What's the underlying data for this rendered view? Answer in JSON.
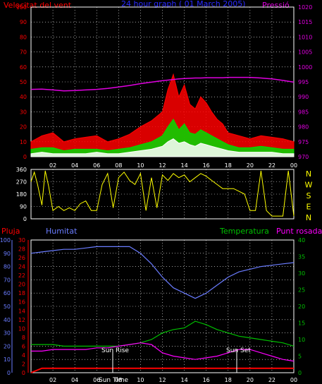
{
  "header": {
    "left_title": "Velocitat del vent",
    "center_title": "24 hour graph ( 01 March 2005)",
    "right_title": "Pressió"
  },
  "colors": {
    "background": "#000000",
    "grid": "#ffffff",
    "wind_title": "#ff0000",
    "center_title": "#2a2aff",
    "pressure": "#e000e0",
    "wind_speed": "#ff0000",
    "wind_avg": "#00dd00",
    "wind_low": "#ffffff",
    "direction": "#ffff00",
    "humidity": "#6a7cff",
    "temperature": "#00c000",
    "dewpoint": "#ff00ff",
    "rain": "#ff0000",
    "sun_markers": "#ffffff"
  },
  "hour_ticks": [
    "02",
    "04",
    "06",
    "08",
    "10",
    "12",
    "14",
    "16",
    "18",
    "20",
    "22",
    "00"
  ],
  "panel_wind": {
    "left_ticks": [
      "100",
      "90",
      "80",
      "70",
      "60",
      "50",
      "40",
      "30",
      "20",
      "10",
      "0"
    ],
    "right_ticks": [
      "1020",
      "1015",
      "1010",
      "1005",
      "1000",
      "995",
      "990",
      "985",
      "980",
      "975",
      "970"
    ]
  },
  "panel_dir": {
    "left_ticks": [
      "360",
      "270",
      "180",
      "90",
      "0"
    ],
    "right_letters": [
      "N",
      "W",
      "S",
      "E",
      "N"
    ]
  },
  "panel_env": {
    "labels": {
      "rain": "Pluja",
      "humidity": "Humitat",
      "temperature": "Temperatura",
      "dewpoint": "Punt rosada"
    },
    "hum_ticks": [
      "100",
      "90",
      "80",
      "70",
      "60",
      "50",
      "40",
      "30",
      "20",
      "10",
      "0"
    ],
    "rain_ticks": [
      "30",
      "28",
      "26",
      "24",
      "22",
      "20",
      "18",
      "16",
      "14",
      "12",
      "10",
      "8",
      "6",
      "4",
      "2",
      "0"
    ],
    "temp_ticks": [
      "40",
      "35",
      "30",
      "25",
      "20",
      "15",
      "10",
      "5",
      "0"
    ],
    "sun_rise": "Sun Rise",
    "sun_set": "Sun Set",
    "sun_time_label": "Sun Time"
  },
  "chart_data": [
    {
      "type": "line",
      "title": "Velocitat del vent",
      "xlabel": "",
      "ylabel": "Velocitat del vent",
      "x_hours": [
        0,
        1,
        2,
        3,
        4,
        5,
        6,
        7,
        8,
        9,
        10,
        11,
        12,
        12.5,
        13,
        13.5,
        14,
        14.5,
        15,
        15.5,
        16,
        16.5,
        17,
        17.5,
        18,
        19,
        20,
        21,
        22,
        23,
        24
      ],
      "ylim": [
        0,
        100
      ],
      "y2lim": [
        970,
        1020
      ],
      "series": [
        {
          "name": "gust",
          "values": [
            10,
            14,
            16,
            10,
            12,
            13,
            14,
            10,
            12,
            15,
            20,
            24,
            30,
            45,
            55,
            40,
            48,
            35,
            32,
            40,
            36,
            30,
            25,
            22,
            16,
            14,
            12,
            14,
            13,
            12,
            10
          ]
        },
        {
          "name": "average",
          "values": [
            5,
            6,
            6,
            4,
            5,
            5,
            5,
            4,
            5,
            6,
            8,
            10,
            14,
            20,
            25,
            18,
            22,
            16,
            15,
            18,
            16,
            14,
            12,
            10,
            8,
            6,
            6,
            7,
            6,
            5,
            5
          ]
        },
        {
          "name": "low",
          "values": [
            2,
            3,
            2,
            2,
            2,
            2,
            3,
            2,
            2,
            3,
            4,
            5,
            7,
            10,
            12,
            9,
            10,
            8,
            7,
            9,
            8,
            7,
            6,
            5,
            4,
            3,
            3,
            3,
            3,
            2,
            2
          ]
        },
        {
          "name": "Pressió",
          "values": [
            992.5,
            992.6,
            992.3,
            992.0,
            992.1,
            992.3,
            992.5,
            992.8,
            993.3,
            993.8,
            994.4,
            994.9,
            995.4,
            995.6,
            995.8,
            996.0,
            996.1,
            996.2,
            996.3,
            996.3,
            996.4,
            996.4,
            996.4,
            996.4,
            996.5,
            996.5,
            996.5,
            996.3,
            996.0,
            995.5,
            994.9
          ]
        }
      ]
    },
    {
      "type": "line",
      "title": "",
      "xlabel": "",
      "ylabel": "",
      "x_hours": [
        0,
        0.3,
        0.6,
        1,
        1.3,
        1.6,
        2,
        2.5,
        3,
        3.5,
        4,
        4.5,
        5,
        5.5,
        6,
        6.5,
        7,
        7.5,
        8,
        8.5,
        9,
        9.5,
        10,
        10.5,
        11,
        11.5,
        12,
        12.5,
        13,
        13.5,
        14,
        14.5,
        15,
        15.5,
        16,
        16.5,
        17,
        17.5,
        18,
        18.5,
        19,
        19.5,
        20,
        20.5,
        21,
        21.5,
        22,
        22.5,
        23,
        23.5,
        24
      ],
      "ylim": [
        0,
        360
      ],
      "series": [
        {
          "name": "direction",
          "values": [
            270,
            340,
            250,
            100,
            350,
            240,
            60,
            90,
            60,
            80,
            60,
            110,
            130,
            60,
            60,
            250,
            330,
            80,
            300,
            340,
            280,
            250,
            330,
            60,
            300,
            80,
            320,
            280,
            330,
            300,
            320,
            270,
            300,
            330,
            310,
            280,
            250,
            220,
            220,
            220,
            200,
            180,
            60,
            60,
            350,
            60,
            20,
            20,
            20,
            350,
            20
          ]
        }
      ]
    },
    {
      "type": "line",
      "title": "",
      "xlabel": "",
      "ylabel": "Humitat",
      "x_hours": [
        0,
        1,
        2,
        3,
        4,
        5,
        6,
        7,
        8,
        9,
        10,
        11,
        12,
        13,
        14,
        15,
        16,
        17,
        18,
        19,
        20,
        21,
        22,
        23,
        24
      ],
      "ylim": [
        0,
        100
      ],
      "series": [
        {
          "name": "Humitat",
          "values": [
            90,
            91,
            92,
            93,
            93,
            94,
            95,
            95,
            95,
            95,
            90,
            82,
            72,
            64,
            60,
            56,
            60,
            66,
            72,
            76,
            78,
            80,
            81,
            82,
            83
          ]
        },
        {
          "name": "Temperatura",
          "values": [
            8.5,
            8.5,
            8.5,
            8,
            8,
            8,
            8,
            8,
            8,
            8.5,
            9,
            10,
            12,
            13,
            13.5,
            15.5,
            14.5,
            13,
            12,
            11,
            10.5,
            10,
            9.5,
            9,
            8
          ]
        },
        {
          "name": "Punt rosada",
          "values": [
            6.5,
            6.5,
            7,
            7,
            7,
            7,
            7.5,
            7.5,
            8,
            8.5,
            9,
            8.5,
            6,
            5,
            4.5,
            4,
            4.5,
            5,
            6,
            7,
            7,
            6,
            5,
            4,
            3.5
          ]
        },
        {
          "name": "Pluja",
          "values": [
            0,
            1,
            1,
            1,
            1,
            1,
            1,
            1,
            1,
            1,
            1,
            1,
            1,
            1,
            1,
            1,
            1,
            1,
            1,
            1,
            1,
            1,
            1,
            1,
            1
          ]
        }
      ],
      "y2lim_temperature": [
        0,
        40
      ],
      "y2lim_rain": [
        0,
        30
      ]
    }
  ]
}
